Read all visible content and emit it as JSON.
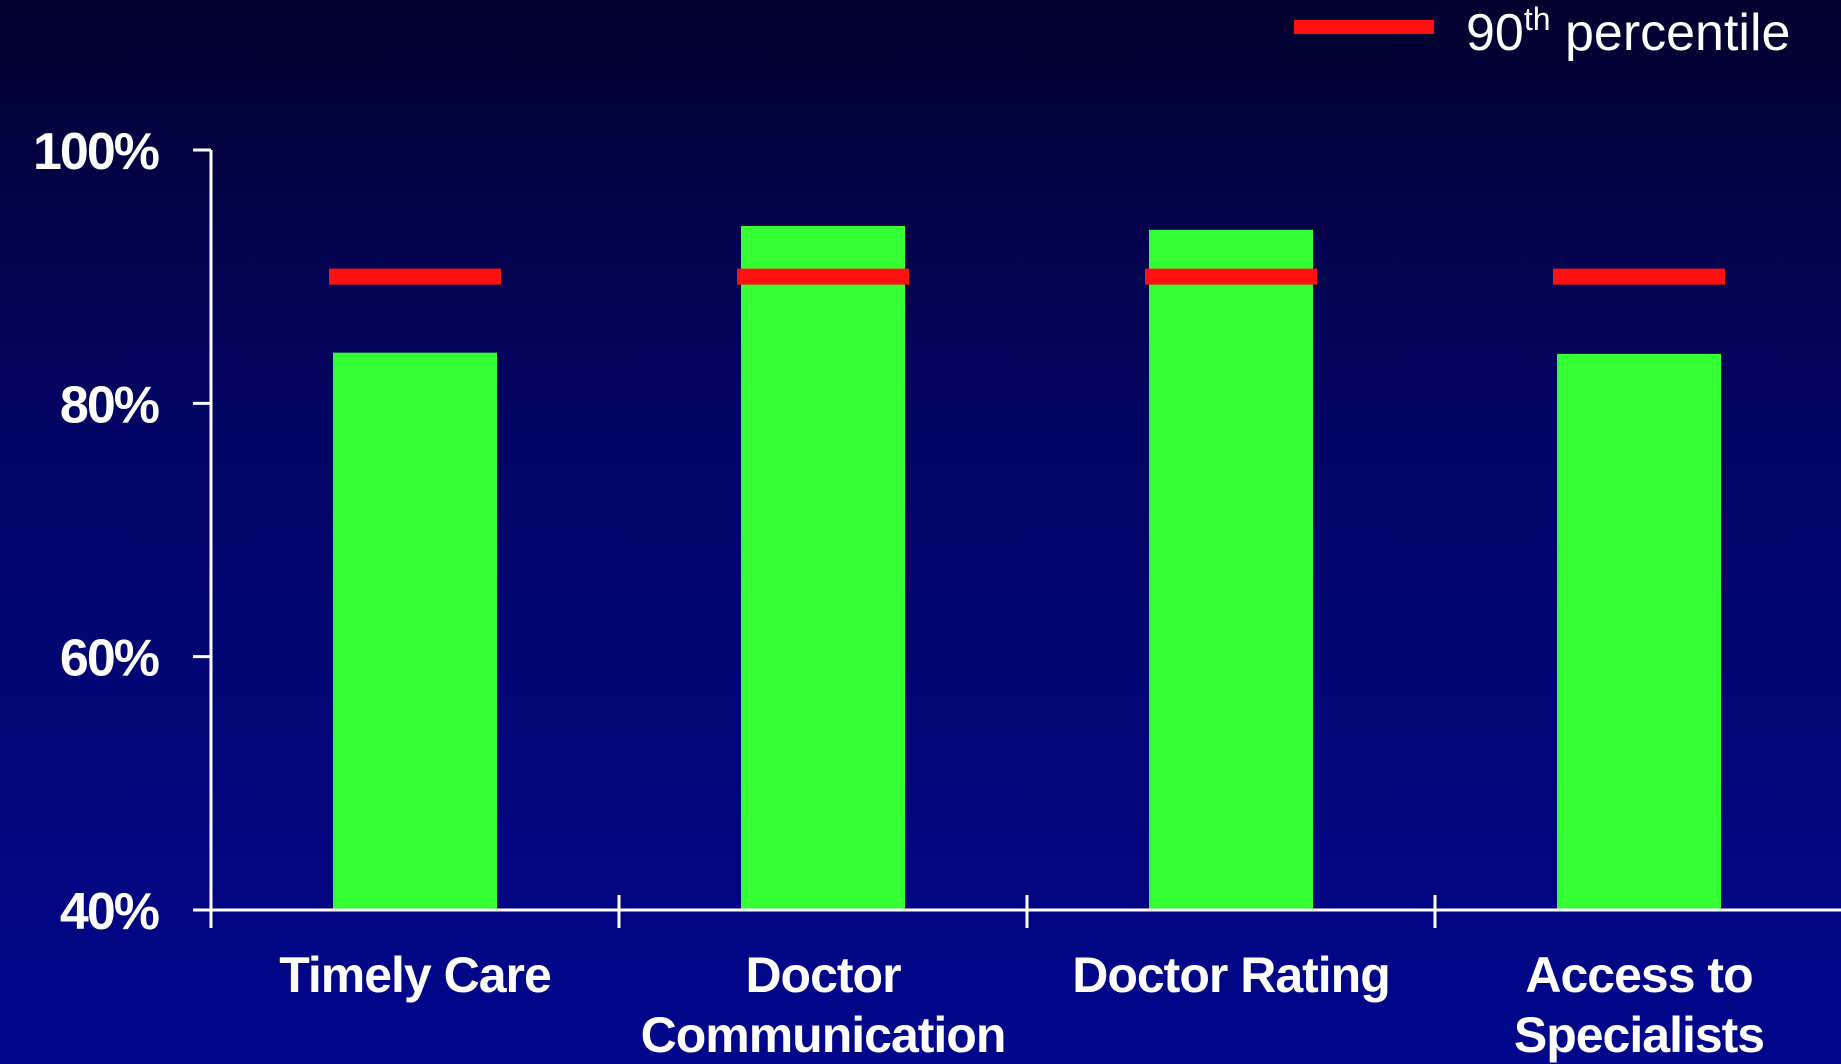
{
  "chart_data": {
    "type": "bar",
    "categories": [
      [
        "Timely Care"
      ],
      [
        "Doctor",
        "Communication"
      ],
      [
        "Doctor Rating"
      ],
      [
        "Access to",
        "Specialists"
      ]
    ],
    "series": [
      {
        "values": [
          84,
          94,
          93.7,
          83.9
        ]
      }
    ],
    "benchmark": {
      "name_main": "90",
      "name_sup": "th",
      "name_rest": " percentile",
      "values": [
        90,
        90,
        90,
        90
      ]
    },
    "yticks": [
      "40%",
      "60%",
      "80%",
      "100%"
    ],
    "ytick_values": [
      40,
      60,
      80,
      100
    ],
    "ylim": [
      40,
      100
    ],
    "legend_position": "top-right",
    "colors": {
      "bar": "#33ff33",
      "benchmark": "#ff1111",
      "axis": "#ffffff",
      "text": "#ffffff"
    }
  }
}
